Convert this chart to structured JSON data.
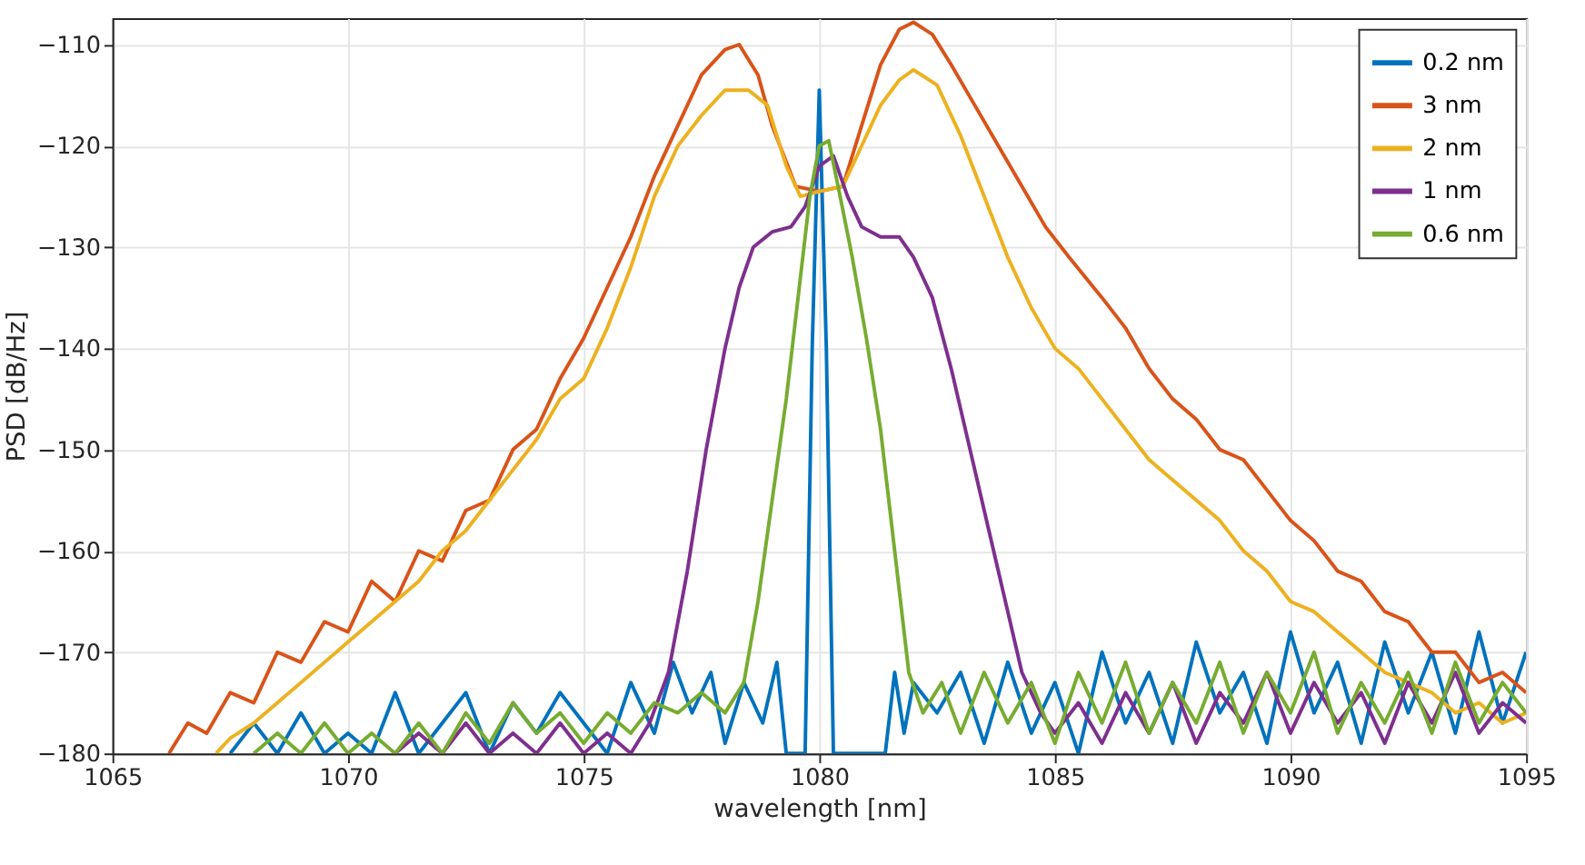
{
  "chart_data": {
    "type": "line",
    "xlabel": "wavelength [nm]",
    "ylabel": "PSD [dB/Hz]",
    "xlim": [
      1065,
      1095
    ],
    "ylim": [
      -180,
      -107.4
    ],
    "xticks": [
      1065,
      1070,
      1075,
      1080,
      1085,
      1090,
      1095
    ],
    "yticks": [
      -180,
      -170,
      -160,
      -150,
      -140,
      -130,
      -120,
      -110
    ],
    "grid": true,
    "legend": "top right",
    "line_style": "solid",
    "marker": "none",
    "series": [
      {
        "name": "0.2 nm",
        "color": "#0072bd",
        "x": [
          1067.5,
          1068,
          1068.5,
          1069,
          1069.5,
          1070,
          1070.5,
          1071,
          1071.5,
          1072,
          1072.5,
          1073,
          1073.5,
          1074,
          1074.5,
          1075,
          1075.5,
          1076,
          1076.5,
          1076.9,
          1077.3,
          1077.7,
          1078,
          1078.4,
          1078.8,
          1079.1,
          1079.3,
          1079.7,
          1079.85,
          1080,
          1080.15,
          1080.3,
          1081.4,
          1081.6,
          1081.8,
          1082,
          1082.5,
          1083,
          1083.5,
          1084,
          1084.5,
          1085,
          1085.5,
          1086,
          1086.5,
          1087,
          1087.5,
          1088,
          1088.5,
          1089,
          1089.5,
          1090,
          1090.5,
          1091,
          1091.5,
          1092,
          1092.5,
          1093,
          1093.5,
          1094,
          1094.5,
          1095
        ],
        "values": [
          -180,
          -177,
          -180,
          -176,
          -180,
          -178,
          -180,
          -174,
          -180,
          -177,
          -174,
          -180,
          -175,
          -178,
          -174,
          -177,
          -180,
          -173,
          -178,
          -171,
          -176,
          -172,
          -179,
          -173,
          -177,
          -171,
          -180,
          -180,
          -140,
          -114.5,
          -140,
          -180,
          -180,
          -172,
          -178,
          -173,
          -176,
          -172,
          -179,
          -171,
          -178,
          -173,
          -180,
          -170,
          -177,
          -172,
          -179,
          -169,
          -176,
          -172,
          -179,
          -168,
          -176,
          -171,
          -179,
          -169,
          -176,
          -170,
          -178,
          -168,
          -177,
          -170
        ]
      },
      {
        "name": "3 nm",
        "color": "#d95319",
        "x": [
          1066.2,
          1066.6,
          1067,
          1067.5,
          1068,
          1068.5,
          1069,
          1069.5,
          1070,
          1070.5,
          1071,
          1071.5,
          1072,
          1072.5,
          1073,
          1073.5,
          1074,
          1074.5,
          1075,
          1075.5,
          1076,
          1076.5,
          1077,
          1077.5,
          1078,
          1078.3,
          1078.7,
          1079,
          1079.5,
          1080,
          1080.5,
          1080.9,
          1081.3,
          1081.7,
          1082,
          1082.4,
          1082.8,
          1083.3,
          1083.8,
          1084.3,
          1084.8,
          1085.3,
          1086,
          1086.5,
          1087,
          1087.5,
          1088,
          1088.5,
          1089,
          1089.5,
          1090,
          1090.5,
          1091,
          1091.5,
          1092,
          1092.5,
          1093,
          1093.5,
          1094,
          1094.5,
          1095
        ],
        "values": [
          -180,
          -177,
          -178,
          -174,
          -175,
          -170,
          -171,
          -167,
          -168,
          -163,
          -165,
          -160,
          -161,
          -156,
          -155,
          -150,
          -148,
          -143,
          -139,
          -134,
          -129,
          -123,
          -118,
          -113,
          -110.5,
          -110,
          -113,
          -118,
          -124,
          -124.5,
          -124,
          -118,
          -112,
          -108.5,
          -107.8,
          -109,
          -112,
          -116,
          -120,
          -124,
          -128,
          -131,
          -135,
          -138,
          -142,
          -145,
          -147,
          -150,
          -151,
          -154,
          -157,
          -159,
          -162,
          -163,
          -166,
          -167,
          -170,
          -170,
          -173,
          -172,
          -174
        ]
      },
      {
        "name": "2 nm",
        "color": "#edb120",
        "x": [
          1067.2,
          1067.5,
          1068,
          1068.5,
          1069,
          1069.5,
          1070,
          1070.5,
          1071,
          1071.5,
          1072,
          1072.5,
          1073,
          1073.5,
          1074,
          1074.5,
          1075,
          1075.5,
          1076,
          1076.5,
          1077,
          1077.5,
          1078,
          1078.5,
          1078.9,
          1079.3,
          1079.6,
          1080,
          1080.5,
          1080.9,
          1081.3,
          1081.7,
          1082,
          1082.5,
          1083,
          1083.5,
          1084,
          1084.5,
          1085,
          1085.5,
          1086,
          1086.5,
          1087,
          1087.5,
          1088,
          1088.5,
          1089,
          1089.5,
          1090,
          1090.5,
          1091,
          1091.5,
          1092,
          1092.5,
          1093,
          1093.5,
          1094,
          1094.5,
          1095
        ],
        "values": [
          -180,
          -178.5,
          -177,
          -175,
          -173,
          -171,
          -169,
          -167,
          -165,
          -163,
          -160,
          -158,
          -155,
          -152,
          -149,
          -145,
          -143,
          -138,
          -132,
          -125,
          -120,
          -117,
          -114.5,
          -114.5,
          -116,
          -122,
          -125,
          -124.5,
          -124,
          -120,
          -116,
          -113.5,
          -112.5,
          -114,
          -119,
          -125,
          -131,
          -136,
          -140,
          -142,
          -145,
          -148,
          -151,
          -153,
          -155,
          -157,
          -160,
          -162,
          -165,
          -166,
          -168,
          -170,
          -172,
          -173,
          -174,
          -176,
          -175,
          -177,
          -176
        ]
      },
      {
        "name": "1 nm",
        "color": "#7e2f8e",
        "x": [
          1071,
          1071.5,
          1072,
          1072.5,
          1073,
          1073.5,
          1074,
          1074.5,
          1075,
          1075.5,
          1076,
          1076.4,
          1076.8,
          1077.2,
          1077.6,
          1078,
          1078.3,
          1078.6,
          1079,
          1079.4,
          1079.7,
          1080,
          1080.3,
          1080.6,
          1080.9,
          1081.3,
          1081.7,
          1082,
          1082.4,
          1082.8,
          1083.2,
          1083.6,
          1084,
          1084.3,
          1084.7,
          1085,
          1085.5,
          1086,
          1086.5,
          1087,
          1087.5,
          1088,
          1088.5,
          1089,
          1089.5,
          1090,
          1090.5,
          1091,
          1091.5,
          1092,
          1092.5,
          1093,
          1093.5,
          1094,
          1094.5,
          1095
        ],
        "values": [
          -180,
          -178,
          -180,
          -177,
          -180,
          -178,
          -180,
          -177,
          -180,
          -178,
          -180,
          -177,
          -172,
          -162,
          -150,
          -140,
          -134,
          -130,
          -128.5,
          -128,
          -126,
          -122,
          -121,
          -125,
          -128,
          -129,
          -129,
          -131,
          -135,
          -142,
          -150,
          -158,
          -166,
          -172,
          -176,
          -178,
          -175,
          -179,
          -174,
          -178,
          -173,
          -179,
          -174,
          -177,
          -172,
          -178,
          -173,
          -177,
          -174,
          -179,
          -173,
          -177,
          -172,
          -178,
          -175,
          -177
        ]
      },
      {
        "name": "0.6 nm",
        "color": "#77ac30",
        "x": [
          1068,
          1068.5,
          1069,
          1069.5,
          1070,
          1070.5,
          1071,
          1071.5,
          1072,
          1072.5,
          1073,
          1073.5,
          1074,
          1074.5,
          1075,
          1075.5,
          1076,
          1076.5,
          1077,
          1077.5,
          1078,
          1078.4,
          1078.7,
          1079,
          1079.3,
          1079.6,
          1079.8,
          1080,
          1080.2,
          1080.4,
          1080.7,
          1081,
          1081.3,
          1081.6,
          1081.9,
          1082.2,
          1082.6,
          1083,
          1083.5,
          1084,
          1084.5,
          1085,
          1085.5,
          1086,
          1086.5,
          1087,
          1087.5,
          1088,
          1088.5,
          1089,
          1089.5,
          1090,
          1090.5,
          1091,
          1091.5,
          1092,
          1092.5,
          1093,
          1093.5,
          1094,
          1094.5,
          1095
        ],
        "values": [
          -180,
          -178,
          -180,
          -177,
          -180,
          -178,
          -180,
          -177,
          -180,
          -176,
          -179,
          -175,
          -178,
          -176,
          -179,
          -176,
          -178,
          -175,
          -176,
          -174,
          -176,
          -173,
          -165,
          -155,
          -145,
          -133,
          -125,
          -120,
          -119.5,
          -124,
          -131,
          -139,
          -148,
          -160,
          -172,
          -176,
          -173,
          -178,
          -172,
          -177,
          -173,
          -179,
          -172,
          -177,
          -171,
          -178,
          -173,
          -177,
          -171,
          -178,
          -172,
          -176,
          -170,
          -178,
          -173,
          -177,
          -172,
          -178,
          -171,
          -177,
          -173,
          -176
        ]
      }
    ]
  }
}
